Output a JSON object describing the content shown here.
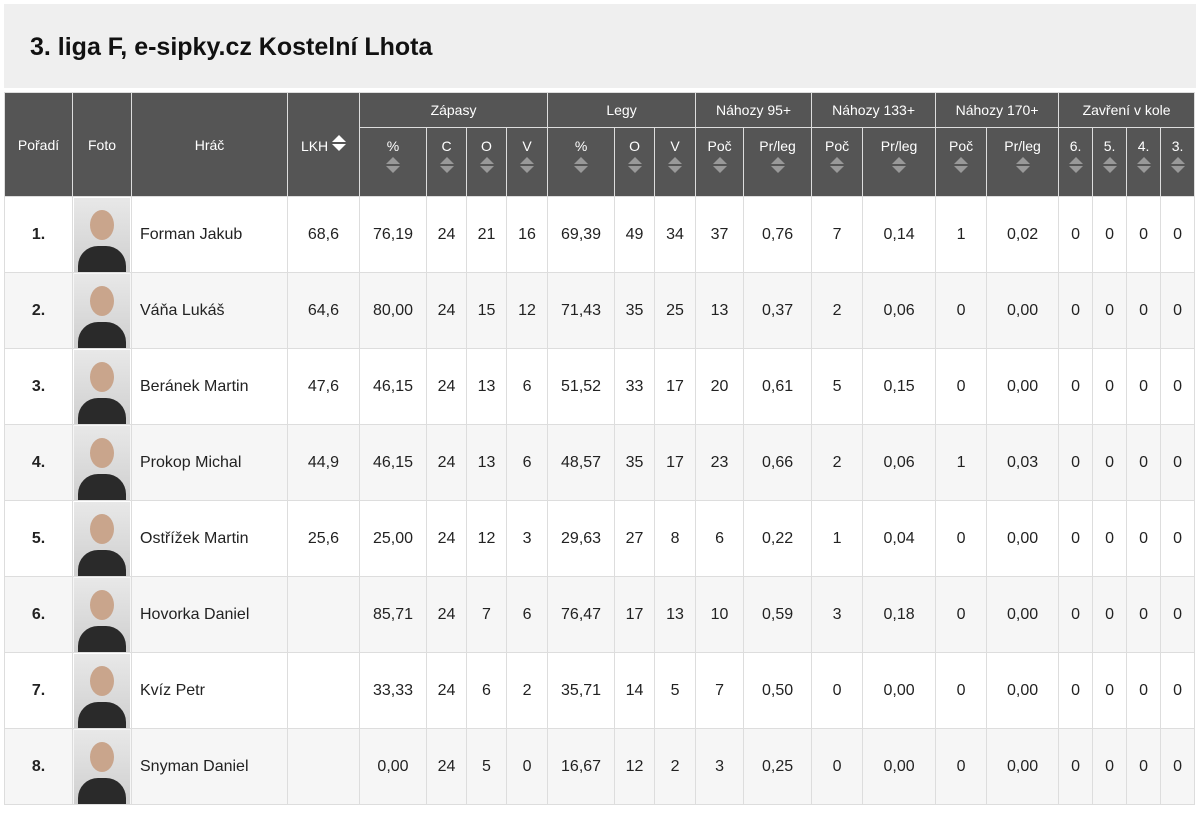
{
  "title": "3. liga F, e-sipky.cz Kostelní Lhota",
  "headers": {
    "rank": "Pořadí",
    "photo": "Foto",
    "player": "Hráč",
    "lkh": "LKH",
    "groups": [
      "Zápasy",
      "Legy",
      "Náhozy 95+",
      "Náhozy 133+",
      "Náhozy 170+",
      "Zavření v kole"
    ],
    "sub": [
      "%",
      "C",
      "O",
      "V",
      "%",
      "O",
      "V",
      "Poč",
      "Pr/leg",
      "Poč",
      "Pr/leg",
      "Poč",
      "Pr/leg",
      "6.",
      "5.",
      "4.",
      "3."
    ]
  },
  "rows": [
    {
      "rank": "1.",
      "name": "Forman Jakub",
      "lkh": "68,6",
      "v": [
        "76,19",
        "24",
        "21",
        "16",
        "69,39",
        "49",
        "34",
        "37",
        "0,76",
        "7",
        "0,14",
        "1",
        "0,02",
        "0",
        "0",
        "0",
        "0"
      ]
    },
    {
      "rank": "2.",
      "name": "Váňa Lukáš",
      "lkh": "64,6",
      "v": [
        "80,00",
        "24",
        "15",
        "12",
        "71,43",
        "35",
        "25",
        "13",
        "0,37",
        "2",
        "0,06",
        "0",
        "0,00",
        "0",
        "0",
        "0",
        "0"
      ]
    },
    {
      "rank": "3.",
      "name": "Beránek Martin",
      "lkh": "47,6",
      "v": [
        "46,15",
        "24",
        "13",
        "6",
        "51,52",
        "33",
        "17",
        "20",
        "0,61",
        "5",
        "0,15",
        "0",
        "0,00",
        "0",
        "0",
        "0",
        "0"
      ]
    },
    {
      "rank": "4.",
      "name": "Prokop Michal",
      "lkh": "44,9",
      "v": [
        "46,15",
        "24",
        "13",
        "6",
        "48,57",
        "35",
        "17",
        "23",
        "0,66",
        "2",
        "0,06",
        "1",
        "0,03",
        "0",
        "0",
        "0",
        "0"
      ]
    },
    {
      "rank": "5.",
      "name": "Ostřížek Martin",
      "lkh": "25,6",
      "v": [
        "25,00",
        "24",
        "12",
        "3",
        "29,63",
        "27",
        "8",
        "6",
        "0,22",
        "1",
        "0,04",
        "0",
        "0,00",
        "0",
        "0",
        "0",
        "0"
      ]
    },
    {
      "rank": "6.",
      "name": "Hovorka Daniel",
      "lkh": "",
      "v": [
        "85,71",
        "24",
        "7",
        "6",
        "76,47",
        "17",
        "13",
        "10",
        "0,59",
        "3",
        "0,18",
        "0",
        "0,00",
        "0",
        "0",
        "0",
        "0"
      ]
    },
    {
      "rank": "7.",
      "name": "Kvíz Petr",
      "lkh": "",
      "v": [
        "33,33",
        "24",
        "6",
        "2",
        "35,71",
        "14",
        "5",
        "7",
        "0,50",
        "0",
        "0,00",
        "0",
        "0,00",
        "0",
        "0",
        "0",
        "0"
      ]
    },
    {
      "rank": "8.",
      "name": "Snyman Daniel",
      "lkh": "",
      "v": [
        "0,00",
        "24",
        "5",
        "0",
        "16,67",
        "12",
        "2",
        "3",
        "0,25",
        "0",
        "0,00",
        "0",
        "0,00",
        "0",
        "0",
        "0",
        "0"
      ]
    }
  ]
}
